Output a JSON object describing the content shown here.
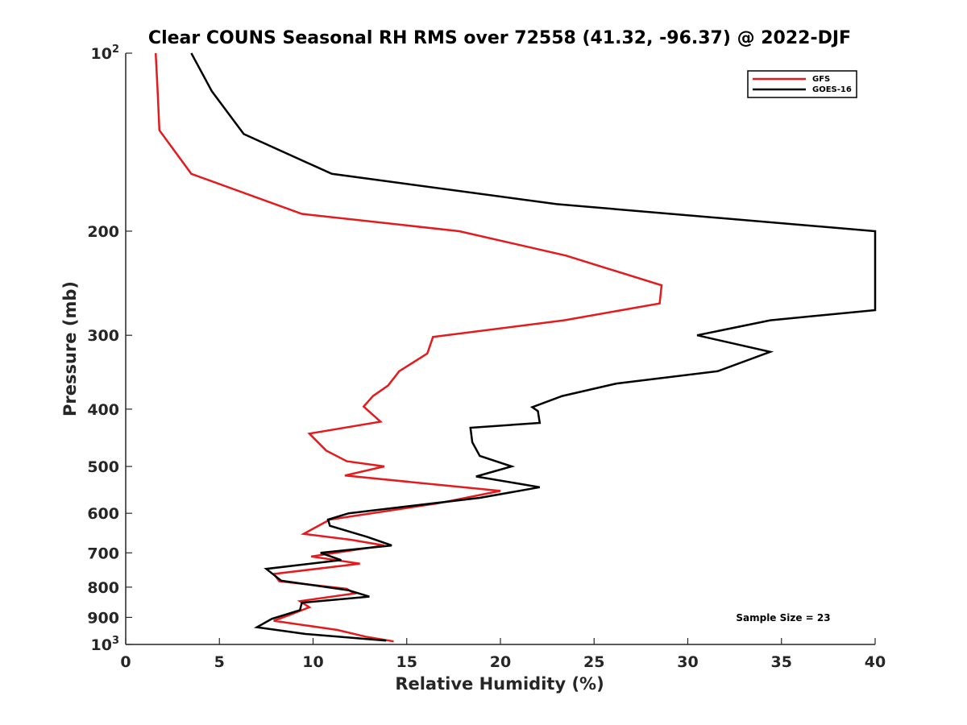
{
  "chart_data": {
    "type": "line",
    "title": "Clear COUNS Seasonal RH RMS over 72558 (41.32, -96.37) @ 2022-DJF",
    "xlabel": "Relative Humidity (%)",
    "ylabel": "Pressure (mb)",
    "xlim": [
      0,
      40
    ],
    "ylim": [
      100,
      1000
    ],
    "yscale": "log",
    "y_direction": "reversed",
    "x_ticks": [
      0,
      5,
      10,
      15,
      20,
      25,
      30,
      35,
      40
    ],
    "y_ticks": [
      {
        "value": 100,
        "label": "10",
        "sup": "2"
      },
      {
        "value": 200,
        "label": "200",
        "sup": ""
      },
      {
        "value": 300,
        "label": "300",
        "sup": ""
      },
      {
        "value": 400,
        "label": "400",
        "sup": ""
      },
      {
        "value": 500,
        "label": "500",
        "sup": ""
      },
      {
        "value": 600,
        "label": "600",
        "sup": ""
      },
      {
        "value": 700,
        "label": "700",
        "sup": ""
      },
      {
        "value": 800,
        "label": "800",
        "sup": ""
      },
      {
        "value": 900,
        "label": "900",
        "sup": ""
      },
      {
        "value": 1000,
        "label": "10",
        "sup": "3"
      }
    ],
    "legend_position": "top-right",
    "annotation": "Sample Size = 23",
    "series": [
      {
        "name": "GFS",
        "color": "#e41a1c",
        "points": [
          [
            1.6,
            100
          ],
          [
            1.7,
            115
          ],
          [
            1.8,
            135
          ],
          [
            3.5,
            160
          ],
          [
            9.4,
            187
          ],
          [
            17.8,
            200
          ],
          [
            23.5,
            220
          ],
          [
            28.6,
            247
          ],
          [
            28.5,
            265
          ],
          [
            23.4,
            283
          ],
          [
            16.4,
            302
          ],
          [
            16.1,
            322
          ],
          [
            14.6,
            345
          ],
          [
            14.0,
            365
          ],
          [
            13.2,
            380
          ],
          [
            12.7,
            396
          ],
          [
            13.6,
            420
          ],
          [
            9.8,
            440
          ],
          [
            10.7,
            470
          ],
          [
            11.8,
            490
          ],
          [
            13.8,
            500
          ],
          [
            11.7,
            518
          ],
          [
            20.0,
            550
          ],
          [
            16.7,
            577
          ],
          [
            10.9,
            615
          ],
          [
            9.5,
            650
          ],
          [
            12.0,
            665
          ],
          [
            13.8,
            680
          ],
          [
            9.9,
            710
          ],
          [
            12.5,
            730
          ],
          [
            7.9,
            760
          ],
          [
            8.2,
            782
          ],
          [
            11.8,
            805
          ],
          [
            12.2,
            820
          ],
          [
            9.3,
            845
          ],
          [
            9.8,
            865
          ],
          [
            8.8,
            890
          ],
          [
            7.9,
            912
          ],
          [
            11.3,
            945
          ],
          [
            12.8,
            970
          ],
          [
            14.3,
            988
          ]
        ]
      },
      {
        "name": "GOES-16",
        "color": "#000000",
        "points": [
          [
            3.5,
            100
          ],
          [
            4.6,
            116
          ],
          [
            6.3,
            137
          ],
          [
            11.0,
            160
          ],
          [
            23.0,
            180
          ],
          [
            40.0,
            200
          ],
          [
            40.0,
            272
          ],
          [
            34.4,
            283
          ],
          [
            30.5,
            300
          ],
          [
            34.4,
            320
          ],
          [
            31.6,
            345
          ],
          [
            26.2,
            362
          ],
          [
            23.3,
            380
          ],
          [
            21.7,
            397
          ],
          [
            22.0,
            403
          ],
          [
            22.1,
            422
          ],
          [
            18.4,
            430
          ],
          [
            18.5,
            455
          ],
          [
            18.9,
            480
          ],
          [
            20.6,
            500
          ],
          [
            18.7,
            520
          ],
          [
            22.1,
            542
          ],
          [
            18.9,
            565
          ],
          [
            11.9,
            600
          ],
          [
            10.8,
            615
          ],
          [
            10.9,
            630
          ],
          [
            12.9,
            658
          ],
          [
            14.2,
            680
          ],
          [
            10.4,
            700
          ],
          [
            11.5,
            720
          ],
          [
            7.5,
            745
          ],
          [
            8.3,
            780
          ],
          [
            11.9,
            810
          ],
          [
            13.0,
            830
          ],
          [
            9.4,
            850
          ],
          [
            9.3,
            875
          ],
          [
            7.8,
            905
          ],
          [
            7.0,
            935
          ],
          [
            9.6,
            960
          ],
          [
            13.9,
            985
          ]
        ]
      }
    ]
  }
}
